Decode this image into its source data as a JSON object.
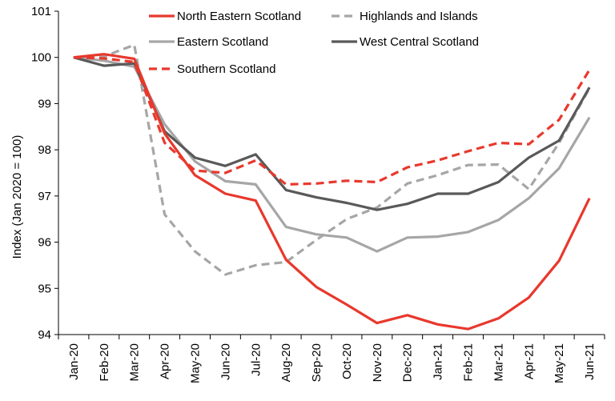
{
  "chart_data": {
    "type": "line",
    "title": "",
    "xlabel": "",
    "ylabel": "Index (Jan 2020 = 100)",
    "ylim": [
      94,
      101
    ],
    "yticks": [
      94,
      95,
      96,
      97,
      98,
      99,
      100,
      101
    ],
    "grid": false,
    "legend": "top",
    "categories": [
      "Jan-20",
      "Feb-20",
      "Mar-20",
      "Apr-20",
      "May-20",
      "Jun-20",
      "Jul-20",
      "Aug-20",
      "Sep-20",
      "Oct-20",
      "Nov-20",
      "Dec-20",
      "Jan-21",
      "Feb-21",
      "Mar-21",
      "Apr-21",
      "May-21",
      "Jun-21"
    ],
    "series": [
      {
        "name": "North Eastern Scotland",
        "color": "#e8382d",
        "dash": "solid",
        "values": [
          100,
          100.07,
          99.97,
          98.35,
          97.45,
          97.05,
          96.9,
          95.62,
          95.03,
          94.65,
          94.25,
          94.42,
          94.22,
          94.12,
          94.35,
          94.8,
          95.6,
          96.95
        ]
      },
      {
        "name": "Highlands and Islands",
        "color": "#a6a6a6",
        "dash": "dashed",
        "values": [
          100,
          100.02,
          100.27,
          96.6,
          95.8,
          95.3,
          95.5,
          95.57,
          96.05,
          96.5,
          96.75,
          97.27,
          97.45,
          97.67,
          97.68,
          97.15,
          98.15,
          99.33
        ]
      },
      {
        "name": "Eastern Scotland",
        "color": "#a6a6a6",
        "dash": "solid",
        "values": [
          100,
          99.93,
          99.8,
          98.55,
          97.75,
          97.32,
          97.25,
          96.33,
          96.17,
          96.1,
          95.8,
          96.1,
          96.12,
          96.22,
          96.48,
          96.95,
          97.6,
          98.7
        ]
      },
      {
        "name": "West Central Scotland",
        "color": "#595959",
        "dash": "solid",
        "values": [
          100,
          99.82,
          99.87,
          98.4,
          97.83,
          97.65,
          97.9,
          97.13,
          96.97,
          96.85,
          96.7,
          96.83,
          97.05,
          97.05,
          97.3,
          97.83,
          98.2,
          99.35
        ]
      },
      {
        "name": "Southern Scotland",
        "color": "#e8382d",
        "dash": "dashed",
        "values": [
          100,
          99.98,
          99.9,
          98.15,
          97.55,
          97.5,
          97.77,
          97.25,
          97.27,
          97.33,
          97.3,
          97.62,
          97.77,
          97.97,
          98.15,
          98.12,
          98.65,
          99.73
        ]
      }
    ]
  }
}
